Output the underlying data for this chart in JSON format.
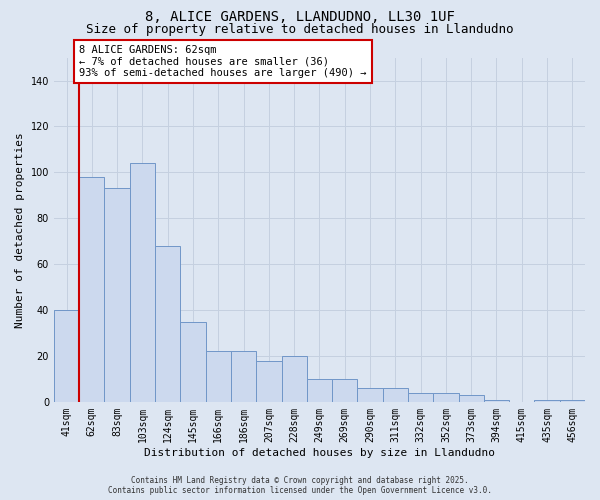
{
  "title_line1": "8, ALICE GARDENS, LLANDUDNO, LL30 1UF",
  "title_line2": "Size of property relative to detached houses in Llandudno",
  "xlabel": "Distribution of detached houses by size in Llandudno",
  "ylabel": "Number of detached properties",
  "bar_labels": [
    "41sqm",
    "62sqm",
    "83sqm",
    "103sqm",
    "124sqm",
    "145sqm",
    "166sqm",
    "186sqm",
    "207sqm",
    "228sqm",
    "249sqm",
    "269sqm",
    "290sqm",
    "311sqm",
    "332sqm",
    "352sqm",
    "373sqm",
    "394sqm",
    "415sqm",
    "435sqm",
    "456sqm"
  ],
  "bar_heights": [
    40,
    98,
    93,
    104,
    68,
    35,
    22,
    22,
    18,
    20,
    10,
    10,
    6,
    6,
    4,
    4,
    3,
    1,
    0,
    1,
    1
  ],
  "bar_color": "#ccd9ee",
  "bar_edge_color": "#7096c8",
  "highlight_index": 1,
  "highlight_color": "#cc0000",
  "annotation_line1": "8 ALICE GARDENS: 62sqm",
  "annotation_line2": "← 7% of detached houses are smaller (36)",
  "annotation_line3": "93% of semi-detached houses are larger (490) →",
  "annotation_box_color": "#ffffff",
  "annotation_box_edge_color": "#cc0000",
  "ylim": [
    0,
    150
  ],
  "yticks": [
    0,
    20,
    40,
    60,
    80,
    100,
    120,
    140
  ],
  "grid_color": "#c5d0e0",
  "plot_bg_color": "#dde6f2",
  "fig_bg_color": "#dde6f2",
  "footer_line1": "Contains HM Land Registry data © Crown copyright and database right 2025.",
  "footer_line2": "Contains public sector information licensed under the Open Government Licence v3.0.",
  "title_fontsize": 10,
  "subtitle_fontsize": 9,
  "axis_label_fontsize": 8,
  "tick_fontsize": 7,
  "annotation_fontsize": 7.5,
  "footer_fontsize": 5.5
}
